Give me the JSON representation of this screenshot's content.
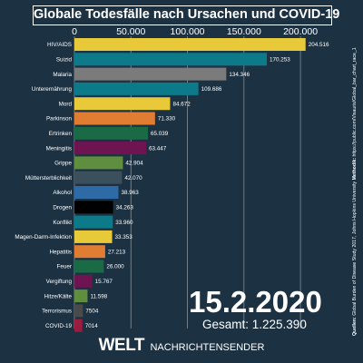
{
  "chart_data": {
    "type": "bar",
    "orientation": "horizontal",
    "title": "Globale Todesfälle nach Ursachen und COVID-19",
    "xlim": [
      0,
      220000
    ],
    "x_ticks": [
      0,
      50000,
      100000,
      150000,
      200000
    ],
    "x_tick_labels": [
      "0",
      "50.000",
      "100.000",
      "150.000",
      "200.000"
    ],
    "grid": true,
    "categories": [
      "HIV/AIDS",
      "Suizid",
      "Malaria",
      "Unterernährung",
      "Mord",
      "Parkinson",
      "Ertrinken",
      "Meningitis",
      "Grippe",
      "Müttersterblichkeit",
      "Alkohol",
      "Drogen",
      "Konflikt",
      "Magen-Darm-Infektion",
      "Hepatitis",
      "Feuer",
      "Vergiftung",
      "Hitze/Kälte",
      "Terrorismus",
      "COVID-19"
    ],
    "values": [
      204516,
      170253,
      134346,
      109686,
      84672,
      71330,
      65039,
      63447,
      42904,
      42070,
      38963,
      34263,
      33960,
      33353,
      27213,
      26000,
      15767,
      11598,
      7504,
      7014
    ],
    "value_labels": [
      "204.516",
      "170.253",
      "134.346",
      "109.686",
      "84.672",
      "71.330",
      "65.039",
      "63.447",
      "42.904",
      "42.070",
      "38.963",
      "34.263",
      "33.960",
      "33.353",
      "27.213",
      "26.000",
      "15.767",
      "11.598",
      "7504",
      "7014"
    ],
    "colors": [
      "#e8c93a",
      "#0d7a8a",
      "#7b7b7b",
      "#0d7a8a",
      "#e8c93a",
      "#e07d32",
      "#1a6b45",
      "#6e1451",
      "#5f8f3e",
      "#3b4f5c",
      "#2d6aa6",
      "#000000",
      "#0d7a8a",
      "#e8c93a",
      "#e07d32",
      "#1a6b45",
      "#6e1451",
      "#5f8f3e",
      "#4a4a4a",
      "#9b1c3f"
    ]
  },
  "date": "15.2.2020",
  "total": "Gesamt: 1.225.390",
  "source": {
    "label": "Quellen:",
    "text": " Global Burden of Disease Study 2017, Johns Hopkins University ",
    "method_label": "Methodik:",
    "method_text": " https://public.com/Visauris/Global_bar_chart_race_1"
  },
  "footer": {
    "brand": "WELT",
    "subtitle": "NACHRICHTENSENDER"
  }
}
